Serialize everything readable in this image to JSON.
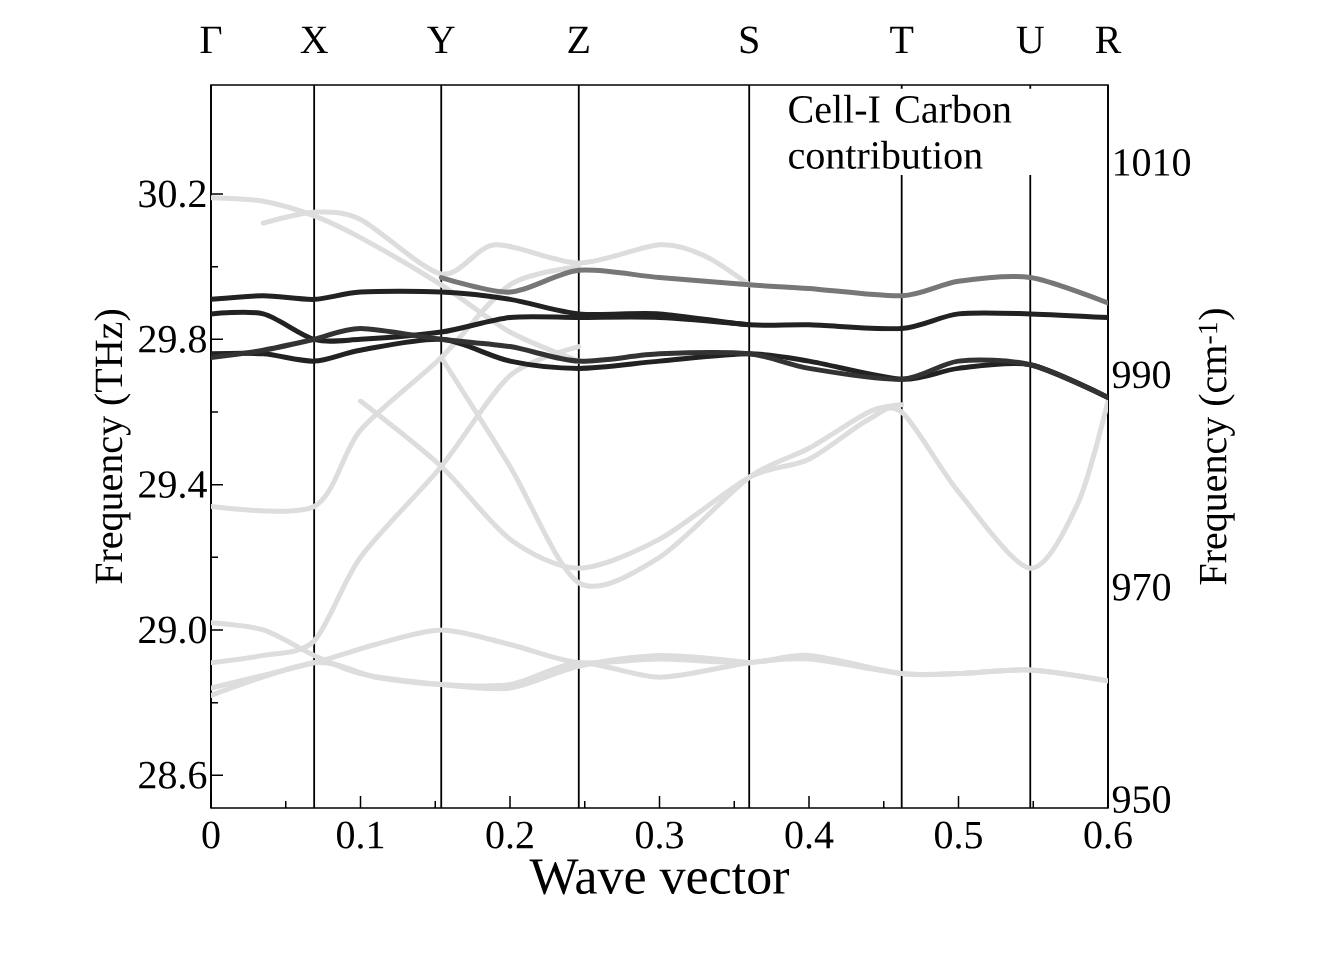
{
  "chart_data": {
    "type": "line",
    "xlabel": "Wave vector",
    "ylabel": "Frequency  (THz)",
    "y2label": "Frequency  (cm$^{-1}$)",
    "annotations": [
      "Cell-I Carbon contribution"
    ],
    "xlim": [
      0,
      0.6
    ],
    "xticks": [
      0,
      0.1,
      0.2,
      0.3,
      0.4,
      0.5,
      0.6
    ],
    "ylim": [
      28.51,
      30.5
    ],
    "yticks": [
      28.6,
      {
        "value": 29.0,
        "label": "29.0"
      },
      29.4,
      29.8,
      30.2
    ],
    "y2lim": [
      949.2,
      1017.3
    ],
    "y2ticks": [
      950,
      970,
      990,
      1010
    ],
    "ref_lines": [
      {
        "axis": "x",
        "value": 0,
        "label": "Γ",
        "color": "#000000"
      },
      {
        "axis": "x",
        "value": 0.069,
        "label": "X",
        "color": "#000000"
      },
      {
        "axis": "x",
        "value": 0.154,
        "label": "Y",
        "color": "#000000"
      },
      {
        "axis": "x",
        "value": 0.246,
        "label": "Z",
        "color": "#000000"
      },
      {
        "axis": "x",
        "value": 0.36,
        "label": "S",
        "color": "#000000"
      },
      {
        "axis": "x",
        "value": 0.462,
        "label": "T",
        "color": "#000000"
      },
      {
        "axis": "x",
        "value": 0.548,
        "label": "U",
        "color": "#000000"
      },
      {
        "axis": "x",
        "value": 0.6,
        "label": "R",
        "color": "#000000"
      }
    ],
    "series": [
      {
        "color": "#dddddd",
        "x": [
          0,
          0.069,
          0.11,
          0.154,
          0.2,
          0.246,
          0.3,
          0.36,
          0.4,
          0.462,
          0.5,
          0.548,
          0.6
        ],
        "values": [
          28.84,
          28.91,
          28.96,
          29.0,
          28.96,
          28.91,
          28.92,
          28.91,
          28.93,
          28.88,
          28.88,
          28.89,
          28.86
        ]
      },
      {
        "color": "#dddddd",
        "x": [
          0,
          0.069,
          0.11,
          0.154,
          0.2,
          0.246,
          0.3,
          0.36,
          0.4,
          0.462,
          0.5,
          0.548,
          0.6
        ],
        "values": [
          28.82,
          28.91,
          28.87,
          28.85,
          28.85,
          28.91,
          28.87,
          28.91,
          28.92,
          28.88,
          28.88,
          28.89,
          28.86
        ]
      },
      {
        "color": "#dddddd",
        "x": [
          0,
          0.035,
          0.069,
          0.1,
          0.154,
          0.2,
          0.246,
          0.3,
          0.36
        ],
        "values": [
          29.02,
          29.0,
          28.93,
          28.88,
          28.85,
          28.84,
          28.9,
          28.93,
          28.91
        ]
      },
      {
        "color": "#dddddd",
        "x": [
          0,
          0.035,
          0.069,
          0.1,
          0.154,
          0.2,
          0.246
        ],
        "values": [
          28.91,
          28.93,
          28.97,
          29.2,
          29.45,
          29.7,
          29.78
        ]
      },
      {
        "color": "#dddddd",
        "x": [
          0,
          0.069,
          0.1,
          0.154,
          0.2,
          0.246
        ],
        "values": [
          29.34,
          29.34,
          29.55,
          29.75,
          29.95,
          30.0
        ]
      },
      {
        "color": "#dddddd",
        "x": [
          0.1,
          0.154,
          0.2,
          0.246,
          0.3,
          0.36,
          0.4,
          0.44,
          0.462,
          0.5,
          0.548,
          0.58,
          0.6
        ],
        "values": [
          29.63,
          29.45,
          29.25,
          29.17,
          29.25,
          29.42,
          29.47,
          29.58,
          29.6,
          29.38,
          29.17,
          29.35,
          29.63
        ]
      },
      {
        "color": "#dddddd",
        "x": [
          0.154,
          0.2,
          0.246,
          0.3,
          0.36,
          0.4,
          0.44,
          0.462
        ],
        "values": [
          29.75,
          29.45,
          29.13,
          29.2,
          29.42,
          29.5,
          29.6,
          29.62
        ]
      },
      {
        "color": "#dddddd",
        "x": [
          0,
          0.035,
          0.069,
          0.1,
          0.154,
          0.2,
          0.246
        ],
        "values": [
          30.19,
          30.18,
          30.14,
          30.08,
          29.95,
          29.82,
          29.74
        ]
      },
      {
        "color": "#dddddd",
        "x": [
          0.035,
          0.069,
          0.1,
          0.154,
          0.19,
          0.246,
          0.3,
          0.33,
          0.36
        ],
        "values": [
          30.12,
          30.15,
          30.13,
          29.98,
          30.06,
          30.01,
          30.06,
          30.03,
          29.95
        ]
      },
      {
        "color": "#222222",
        "x": [
          0,
          0.035,
          0.069,
          0.1,
          0.154,
          0.2,
          0.246,
          0.3,
          0.36,
          0.4,
          0.462,
          0.5,
          0.548,
          0.6
        ],
        "values": [
          29.91,
          29.92,
          29.91,
          29.93,
          29.93,
          29.91,
          29.87,
          29.87,
          29.84,
          29.84,
          29.83,
          29.87,
          29.87,
          29.86
        ]
      },
      {
        "color": "#222222",
        "x": [
          0,
          0.035,
          0.069,
          0.1,
          0.154,
          0.2,
          0.246,
          0.3,
          0.36
        ],
        "values": [
          29.87,
          29.87,
          29.8,
          29.8,
          29.82,
          29.86,
          29.86,
          29.86,
          29.84
        ]
      },
      {
        "color": "#222222",
        "x": [
          0,
          0.035,
          0.069,
          0.1,
          0.154,
          0.2,
          0.246,
          0.3,
          0.36,
          0.4,
          0.462,
          0.5,
          0.548,
          0.6
        ],
        "values": [
          29.76,
          29.76,
          29.74,
          29.77,
          29.8,
          29.74,
          29.72,
          29.74,
          29.76,
          29.74,
          29.69,
          29.72,
          29.73,
          29.64
        ]
      },
      {
        "color": "#333333",
        "x": [
          0,
          0.035,
          0.069,
          0.1,
          0.154,
          0.2,
          0.246,
          0.3,
          0.36,
          0.4,
          0.462,
          0.5,
          0.548,
          0.6
        ],
        "values": [
          29.75,
          29.77,
          29.8,
          29.83,
          29.8,
          29.78,
          29.74,
          29.76,
          29.76,
          29.72,
          29.69,
          29.74,
          29.73,
          29.64
        ]
      },
      {
        "color": "#777777",
        "x": [
          0.154,
          0.2,
          0.246,
          0.3,
          0.36,
          0.4,
          0.462,
          0.5,
          0.548,
          0.6
        ],
        "values": [
          29.97,
          29.93,
          29.99,
          29.97,
          29.95,
          29.94,
          29.92,
          29.96,
          29.97,
          29.9
        ]
      }
    ]
  }
}
